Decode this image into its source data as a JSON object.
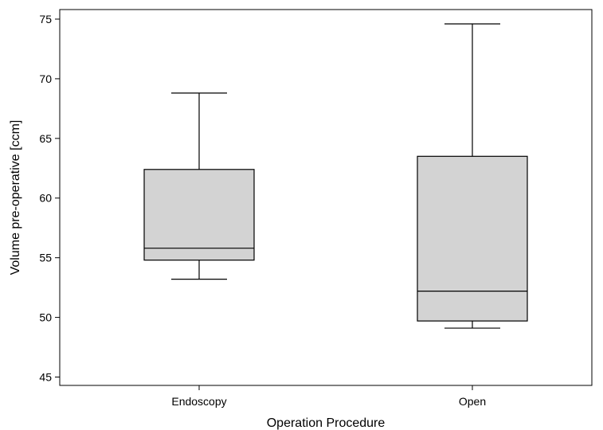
{
  "chart_data": {
    "type": "boxplot",
    "title": "",
    "xlabel": "Operation Procedure",
    "ylabel": "Volume pre-operative [ccm]",
    "ylim": [
      44.3,
      75.8
    ],
    "yticks": [
      45,
      50,
      55,
      60,
      65,
      70,
      75
    ],
    "grid": false,
    "categories": [
      "Endoscopy",
      "Open"
    ],
    "series": [
      {
        "category": "Endoscopy",
        "min": 53.2,
        "q1": 54.8,
        "median": 55.8,
        "q3": 62.4,
        "max": 68.8
      },
      {
        "category": "Open",
        "min": 49.1,
        "q1": 49.7,
        "median": 52.2,
        "q3": 63.5,
        "max": 74.6
      }
    ],
    "colors": {
      "box_fill": "#d3d3d3",
      "line": "#000000",
      "background": "#ffffff"
    }
  }
}
